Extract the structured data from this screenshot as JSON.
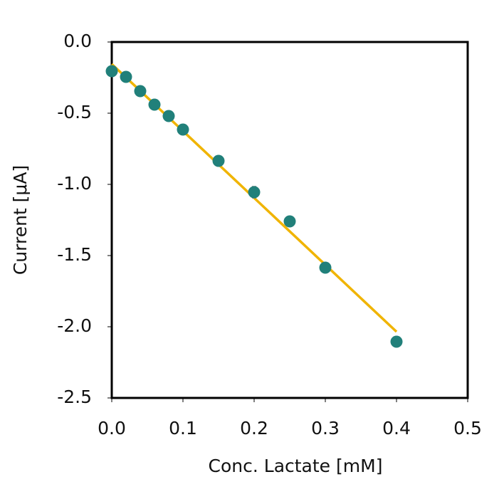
{
  "chart_data": {
    "type": "scatter",
    "x_label": "Conc. Lactate [mM]",
    "y_label": "Current  [μA]",
    "series": [
      {
        "color": "#21807a",
        "x": [
          0,
          0.02,
          0.04,
          0.06,
          0.08,
          0.1,
          0.15,
          0.2,
          0.25,
          0.3,
          0.4
        ],
        "values": [
          -0.205,
          -0.245,
          -0.345,
          -0.44,
          -0.52,
          -0.615,
          -0.835,
          -1.055,
          -1.26,
          -1.585,
          -2.105
        ],
        "errors": [
          0.01,
          0.01,
          0.01,
          0.01,
          0.01,
          0.01,
          0.03,
          0.04,
          0.015,
          0.025,
          0.035
        ]
      }
    ],
    "fit": {
      "color": "#f0b400",
      "x": [
        0,
        0.4
      ],
      "values": [
        -0.155,
        -2.035
      ]
    },
    "error_color": "#777777",
    "xlim": [
      0,
      0.5
    ],
    "ylim": [
      -2.5,
      0
    ],
    "xticks": [
      {
        "value": 0,
        "label": "0.0"
      },
      0.1,
      0.2,
      0.3,
      0.4,
      0.5
    ],
    "yticks": [
      {
        "value": 0,
        "label": "0.0"
      },
      -0.5,
      {
        "value": -1,
        "label": "-1.0"
      },
      -1.5,
      {
        "value": -2,
        "label": "-2.0"
      },
      -2.5
    ]
  }
}
